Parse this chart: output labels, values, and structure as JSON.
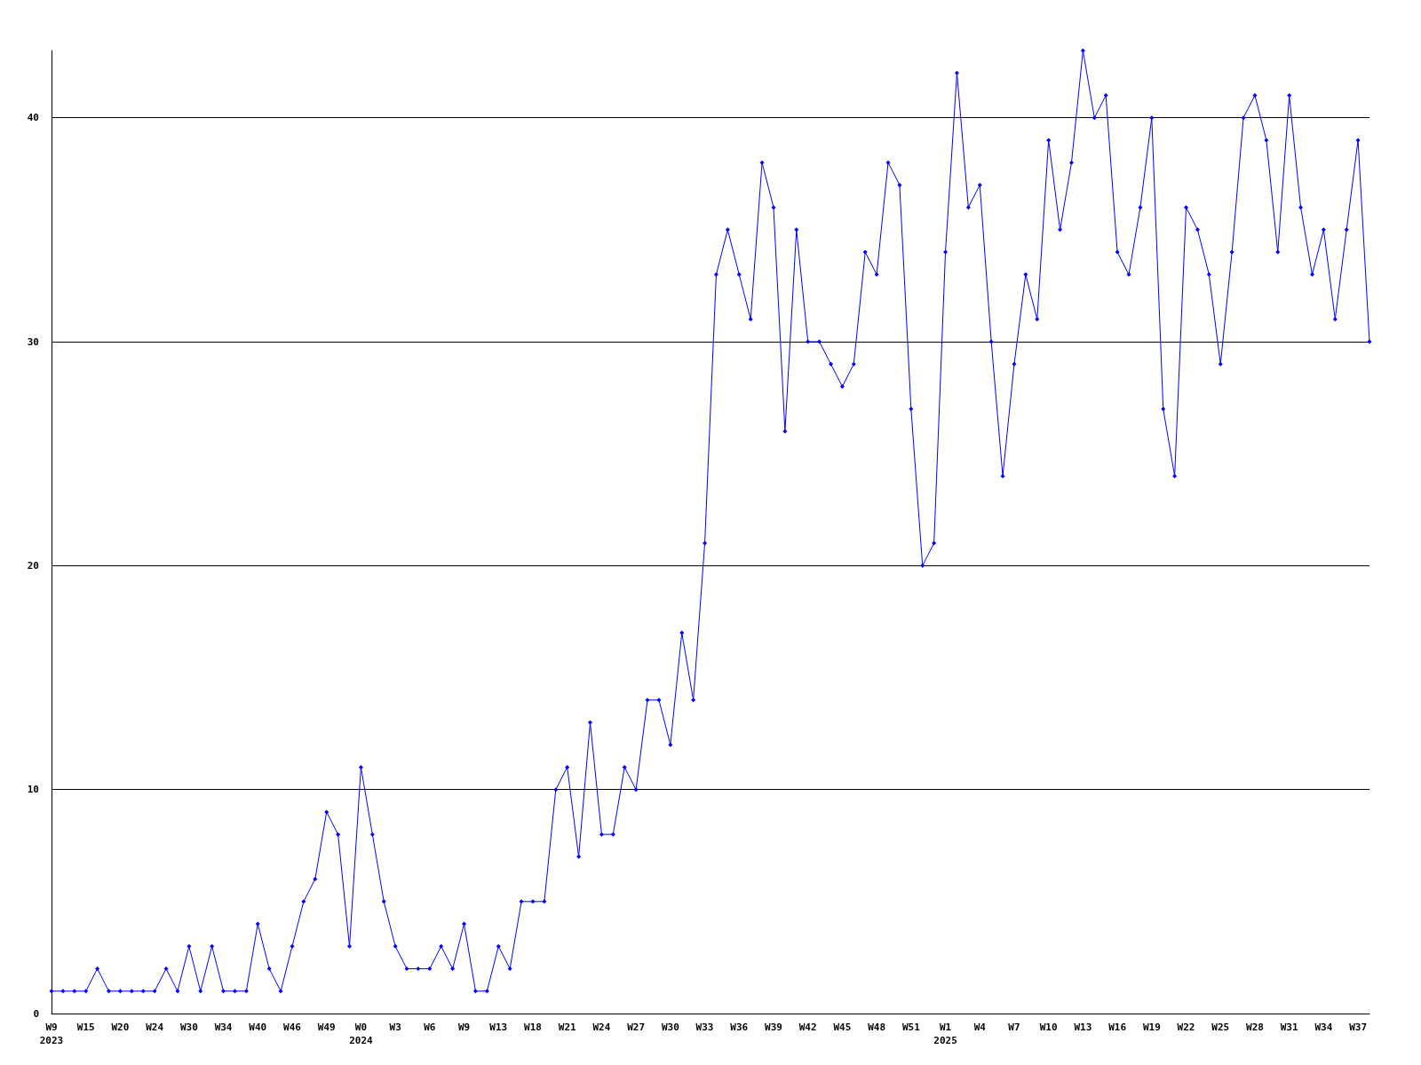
{
  "chart_data": {
    "type": "line",
    "categories": [
      "W9\n2023",
      null,
      null,
      "W15",
      null,
      null,
      "W20",
      null,
      null,
      "W24",
      null,
      null,
      "W30",
      null,
      null,
      "W34",
      null,
      null,
      "W40",
      null,
      null,
      "W46",
      null,
      null,
      "W49",
      null,
      null,
      "W0\n2024",
      null,
      null,
      "W3",
      null,
      null,
      "W6",
      null,
      null,
      "W9",
      null,
      null,
      "W13",
      null,
      null,
      "W18",
      null,
      null,
      "W21",
      null,
      null,
      "W24",
      null,
      null,
      "W27",
      null,
      null,
      "W30",
      null,
      null,
      "W33",
      null,
      null,
      "W36",
      null,
      null,
      "W39",
      null,
      null,
      "W42",
      null,
      null,
      "W45",
      null,
      null,
      "W48",
      null,
      null,
      "W51",
      null,
      null,
      "W1\n2025",
      null,
      null,
      "W4",
      null,
      null,
      "W7",
      null,
      null,
      "W10",
      null,
      null,
      "W13",
      null,
      null,
      "W16",
      null,
      null,
      "W19",
      null,
      null,
      "W22",
      null,
      null,
      "W25",
      null,
      null,
      "W28",
      null,
      null,
      "W31",
      null,
      null,
      "W34",
      null,
      null,
      "W37",
      null
    ],
    "series": [
      {
        "color": "#0000ff",
        "values": [
          1,
          1,
          1,
          1,
          2,
          1,
          1,
          1,
          1,
          1,
          2,
          1,
          3,
          1,
          3,
          1,
          1,
          1,
          4,
          2,
          1,
          3,
          5,
          6,
          9,
          8,
          3,
          11,
          8,
          5,
          3,
          2,
          2,
          2,
          3,
          2,
          4,
          1,
          1,
          3,
          2,
          5,
          5,
          5,
          10,
          11,
          7,
          13,
          8,
          8,
          11,
          10,
          14,
          14,
          12,
          17,
          14,
          21,
          33,
          35,
          33,
          31,
          38,
          36,
          26,
          35,
          30,
          30,
          29,
          28,
          29,
          34,
          33,
          38,
          37,
          27,
          20,
          21,
          34,
          42,
          36,
          37,
          30,
          24,
          29,
          33,
          31,
          39,
          35,
          38,
          43,
          40,
          41,
          34,
          33,
          36,
          40,
          27,
          24,
          36,
          35,
          33,
          29,
          34,
          40,
          41,
          39,
          34,
          41,
          36,
          33,
          35,
          31,
          35,
          39,
          30
        ]
      }
    ],
    "ylim": [
      0,
      43
    ],
    "yticks": [
      0,
      10,
      20,
      30,
      40
    ],
    "grid": "y",
    "marker": "diamond",
    "line_style": "solid"
  }
}
